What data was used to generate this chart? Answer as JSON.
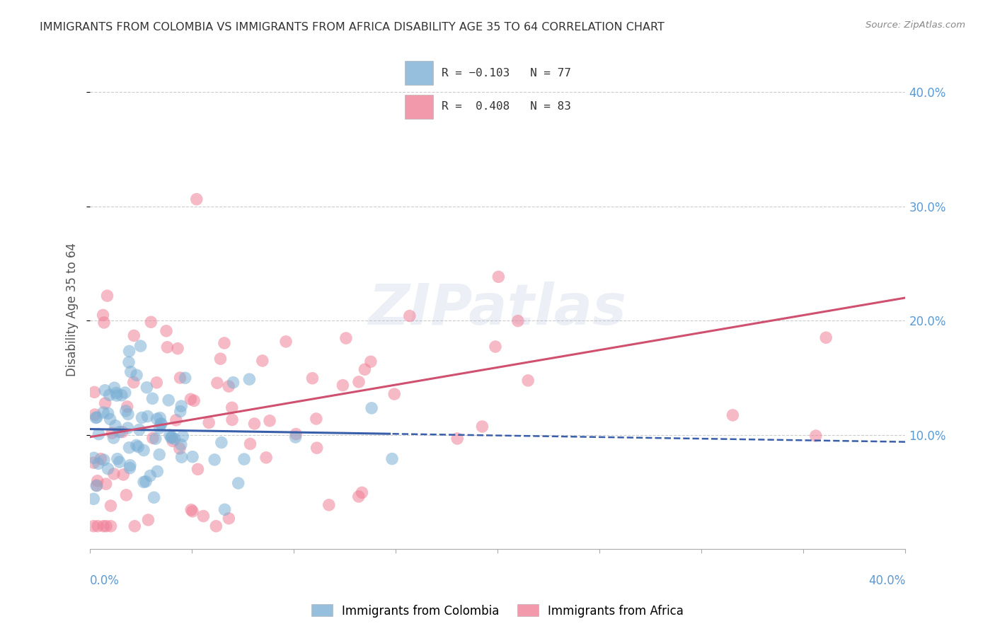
{
  "title": "IMMIGRANTS FROM COLOMBIA VS IMMIGRANTS FROM AFRICA DISABILITY AGE 35 TO 64 CORRELATION CHART",
  "source": "Source: ZipAtlas.com",
  "ylabel": "Disability Age 35 to 64",
  "xlim": [
    0.0,
    0.4
  ],
  "ylim": [
    0.0,
    0.42
  ],
  "yticks": [
    0.1,
    0.2,
    0.3,
    0.4
  ],
  "ytick_labels": [
    "10.0%",
    "20.0%",
    "30.0%",
    "40.0%"
  ],
  "colombia_color": "#7bafd4",
  "africa_color": "#f08098",
  "colombia_line_color": "#3a5faa",
  "africa_line_color": "#d05070",
  "colombia_R": -0.103,
  "colombia_N": 77,
  "africa_R": 0.408,
  "africa_N": 83,
  "watermark": "ZIPatlas",
  "background_color": "#ffffff",
  "grid_color": "#cccccc",
  "tick_color": "#5b9bd5",
  "colombia_line_intercept": 0.105,
  "colombia_line_slope": -0.028,
  "africa_line_intercept": 0.098,
  "africa_line_slope": 0.305
}
